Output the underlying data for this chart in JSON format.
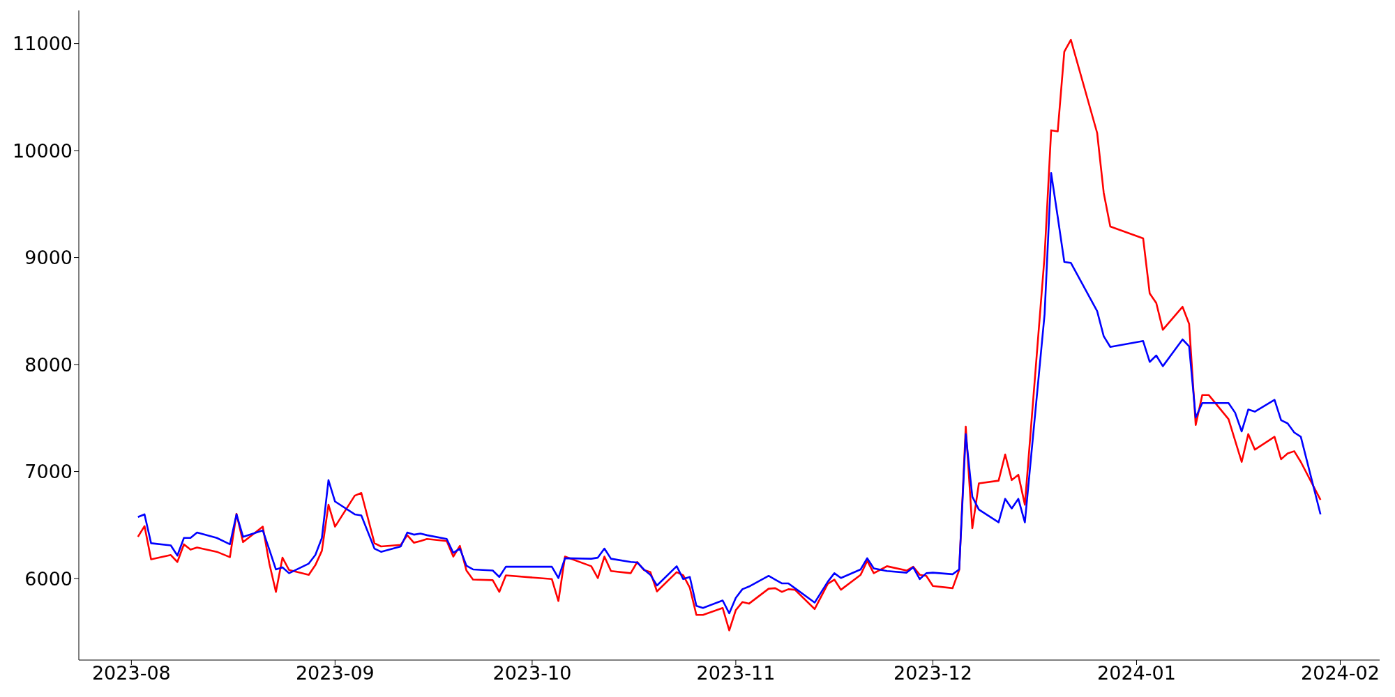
{
  "chart_data": {
    "type": "line",
    "x": [
      "2023-08-02",
      "2023-08-03",
      "2023-08-04",
      "2023-08-07",
      "2023-08-08",
      "2023-08-09",
      "2023-08-10",
      "2023-08-11",
      "2023-08-14",
      "2023-08-16",
      "2023-08-17",
      "2023-08-18",
      "2023-08-21",
      "2023-08-22",
      "2023-08-23",
      "2023-08-24",
      "2023-08-25",
      "2023-08-28",
      "2023-08-29",
      "2023-08-30",
      "2023-08-31",
      "2023-09-01",
      "2023-09-04",
      "2023-09-05",
      "2023-09-07",
      "2023-09-08",
      "2023-09-11",
      "2023-09-12",
      "2023-09-13",
      "2023-09-14",
      "2023-09-15",
      "2023-09-18",
      "2023-09-19",
      "2023-09-20",
      "2023-09-21",
      "2023-09-22",
      "2023-09-25",
      "2023-09-26",
      "2023-09-27",
      "2023-10-04",
      "2023-10-05",
      "2023-10-06",
      "2023-10-10",
      "2023-10-11",
      "2023-10-12",
      "2023-10-13",
      "2023-10-16",
      "2023-10-17",
      "2023-10-18",
      "2023-10-19",
      "2023-10-20",
      "2023-10-23",
      "2023-10-24",
      "2023-10-25",
      "2023-10-26",
      "2023-10-27",
      "2023-10-30",
      "2023-10-31",
      "2023-11-01",
      "2023-11-02",
      "2023-11-03",
      "2023-11-06",
      "2023-11-07",
      "2023-11-08",
      "2023-11-09",
      "2023-11-10",
      "2023-11-13",
      "2023-11-15",
      "2023-11-16",
      "2023-11-17",
      "2023-11-20",
      "2023-11-21",
      "2023-11-22",
      "2023-11-24",
      "2023-11-27",
      "2023-11-28",
      "2023-11-29",
      "2023-11-30",
      "2023-12-01",
      "2023-12-04",
      "2023-12-05",
      "2023-12-06",
      "2023-12-07",
      "2023-12-08",
      "2023-12-11",
      "2023-12-12",
      "2023-12-13",
      "2023-12-14",
      "2023-12-15",
      "2023-12-18",
      "2023-12-19",
      "2023-12-20",
      "2023-12-21",
      "2023-12-22",
      "2023-12-26",
      "2023-12-27",
      "2023-12-28",
      "2024-01-02",
      "2024-01-03",
      "2024-01-04",
      "2024-01-05",
      "2024-01-08",
      "2024-01-09",
      "2024-01-10",
      "2024-01-11",
      "2024-01-12",
      "2024-01-15",
      "2024-01-16",
      "2024-01-17",
      "2024-01-18",
      "2024-01-19",
      "2024-01-22",
      "2024-01-23",
      "2024-01-24",
      "2024-01-25",
      "2024-01-26",
      "2024-01-29"
    ],
    "series": [
      {
        "color": "#ff0000",
        "values": [
          6390,
          6490,
          6180,
          6220,
          6155,
          6320,
          6270,
          6290,
          6250,
          6200,
          6605,
          6340,
          6485,
          6140,
          5875,
          6195,
          6080,
          6035,
          6125,
          6260,
          6690,
          6485,
          6775,
          6800,
          6330,
          6300,
          6315,
          6405,
          6335,
          6350,
          6370,
          6350,
          6205,
          6305,
          6075,
          5990,
          5985,
          5875,
          6030,
          5995,
          5790,
          6205,
          6115,
          6005,
          6205,
          6070,
          6050,
          6155,
          6080,
          6060,
          5880,
          6060,
          6030,
          5915,
          5660,
          5660,
          5725,
          5515,
          5705,
          5780,
          5765,
          5905,
          5910,
          5875,
          5900,
          5895,
          5715,
          5950,
          5990,
          5895,
          6035,
          6165,
          6050,
          6115,
          6075,
          6110,
          6035,
          6025,
          5930,
          5910,
          6080,
          7420,
          6470,
          6890,
          6915,
          7160,
          6920,
          6970,
          6690,
          9015,
          10190,
          10180,
          10925,
          11035,
          10165,
          9605,
          9290,
          9180,
          8665,
          8575,
          8325,
          8540,
          8380,
          7435,
          7715,
          7715,
          7490,
          7290,
          7090,
          7350,
          7205,
          7325,
          7115,
          7170,
          7190,
          7090,
          6735
        ]
      },
      {
        "color": "#0000ff",
        "values": [
          6575,
          6600,
          6330,
          6310,
          6215,
          6380,
          6380,
          6430,
          6380,
          6320,
          6600,
          6390,
          6450,
          6270,
          6085,
          6105,
          6050,
          6140,
          6220,
          6380,
          6920,
          6720,
          6600,
          6590,
          6280,
          6250,
          6300,
          6430,
          6410,
          6420,
          6405,
          6370,
          6240,
          6280,
          6120,
          6085,
          6075,
          6015,
          6110,
          6110,
          6005,
          6190,
          6185,
          6195,
          6280,
          6185,
          6155,
          6150,
          6085,
          6035,
          5935,
          6115,
          5995,
          6015,
          5745,
          5725,
          5795,
          5675,
          5820,
          5900,
          5925,
          6025,
          5990,
          5955,
          5955,
          5910,
          5775,
          5970,
          6050,
          6005,
          6085,
          6190,
          6095,
          6070,
          6055,
          6105,
          5995,
          6050,
          6055,
          6040,
          6085,
          7350,
          6765,
          6645,
          6525,
          6745,
          6655,
          6745,
          6525,
          8470,
          9790,
          9380,
          8960,
          8950,
          8500,
          8265,
          8165,
          8220,
          8025,
          8085,
          7985,
          8235,
          8170,
          7505,
          7640,
          7640,
          7640,
          7550,
          7375,
          7580,
          7560,
          7670,
          7480,
          7450,
          7365,
          7325,
          6600
        ]
      }
    ],
    "xlim": [
      "2023-07-24",
      "2024-02-07"
    ],
    "xticks": [
      "2023-08",
      "2023-09",
      "2023-10",
      "2023-11",
      "2023-12",
      "2024-01",
      "2024-02"
    ],
    "ylim": [
      5238,
      11310
    ],
    "yticks": [
      6000,
      7000,
      8000,
      9000,
      10000,
      11000
    ]
  }
}
